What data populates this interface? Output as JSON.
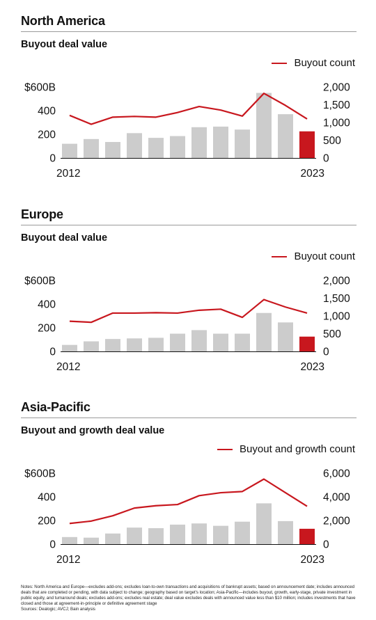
{
  "panels": [
    {
      "region": "North America",
      "subtitle": "Buyout deal value",
      "legend": "Buyout count",
      "chart_data": {
        "type": "bar+line",
        "x": [
          2012,
          2013,
          2014,
          2015,
          2016,
          2017,
          2018,
          2019,
          2020,
          2021,
          2022,
          2023
        ],
        "x_tick_labels": [
          "2012",
          "2023"
        ],
        "left_axis": {
          "tick_labels": [
            "$600B",
            "400",
            "200",
            "0"
          ],
          "ylim": [
            0,
            600
          ]
        },
        "right_axis": {
          "tick_labels": [
            "2,000",
            "1,500",
            "1,000",
            "500",
            "0"
          ],
          "ylim": [
            0,
            2000
          ]
        },
        "series": [
          {
            "kind": "bar",
            "axis": "left",
            "values": [
              120,
              160,
              135,
              210,
              170,
              185,
              260,
              265,
              240,
              550,
              370,
              225
            ],
            "color": "#cccccc",
            "highlight_last_color": "#c8171e"
          },
          {
            "name": "Buyout count",
            "kind": "line",
            "axis": "right",
            "values": [
              1200,
              950,
              1150,
              1170,
              1150,
              1280,
              1450,
              1350,
              1180,
              1820,
              1480,
              1100
            ],
            "color": "#c8171e"
          }
        ],
        "grid": false
      }
    },
    {
      "region": "Europe",
      "subtitle": "Buyout deal value",
      "legend": "Buyout count",
      "chart_data": {
        "type": "bar+line",
        "x": [
          2012,
          2013,
          2014,
          2015,
          2016,
          2017,
          2018,
          2019,
          2020,
          2021,
          2022,
          2023
        ],
        "x_tick_labels": [
          "2012",
          "2023"
        ],
        "left_axis": {
          "tick_labels": [
            "$600B",
            "400",
            "200",
            "0"
          ],
          "ylim": [
            0,
            600
          ]
        },
        "right_axis": {
          "tick_labels": [
            "2,000",
            "1,500",
            "1,000",
            "500",
            "0"
          ],
          "ylim": [
            0,
            2000
          ]
        },
        "series": [
          {
            "kind": "bar",
            "axis": "left",
            "values": [
              55,
              85,
              105,
              110,
              115,
              150,
              180,
              150,
              150,
              325,
              245,
              125
            ],
            "color": "#cccccc",
            "highlight_last_color": "#c8171e"
          },
          {
            "name": "Buyout count",
            "kind": "line",
            "axis": "right",
            "values": [
              850,
              820,
              1080,
              1080,
              1090,
              1080,
              1160,
              1190,
              960,
              1460,
              1250,
              1080
            ],
            "color": "#c8171e"
          }
        ],
        "grid": false
      }
    },
    {
      "region": "Asia-Pacific",
      "subtitle": "Buyout and growth deal value",
      "legend": "Buyout and growth count",
      "chart_data": {
        "type": "bar+line",
        "x": [
          2012,
          2013,
          2014,
          2015,
          2016,
          2017,
          2018,
          2019,
          2020,
          2021,
          2022,
          2023
        ],
        "x_tick_labels": [
          "2012",
          "2023"
        ],
        "left_axis": {
          "tick_labels": [
            "$600B",
            "400",
            "200",
            "0"
          ],
          "ylim": [
            0,
            600
          ]
        },
        "right_axis": {
          "tick_labels": [
            "6,000",
            "4,000",
            "2,000",
            "0"
          ],
          "ylim": [
            0,
            6000
          ]
        },
        "series": [
          {
            "kind": "bar",
            "axis": "left",
            "values": [
              60,
              55,
              90,
              140,
              135,
              165,
              175,
              155,
              190,
              345,
              195,
              130
            ],
            "color": "#cccccc",
            "highlight_last_color": "#c8171e"
          },
          {
            "name": "Buyout and growth count",
            "kind": "line",
            "axis": "right",
            "values": [
              1750,
              1950,
              2400,
              3050,
              3250,
              3350,
              4100,
              4350,
              4450,
              5500,
              4350,
              3200
            ],
            "color": "#c8171e"
          }
        ],
        "grid": false
      }
    }
  ],
  "notes": "Notes: North America and Europe—excludes add-ons; excludes loan-to-own transactions and acquisitions of bankrupt assets; based on announcement date; includes announced deals that are completed or pending, with data subject to change; geography based on target's location; Asia-Pacific—includes buyout, growth, early-stage, private investment in public equity, and turnaround deals; excludes add-ons; excludes real estate; deal value excludes deals with announced value less than $10 million; includes investments that have closed and those at agreement-in-principle or definitive agreement stage",
  "sources": "Sources: Dealogic; AVCJ; Bain analysis"
}
